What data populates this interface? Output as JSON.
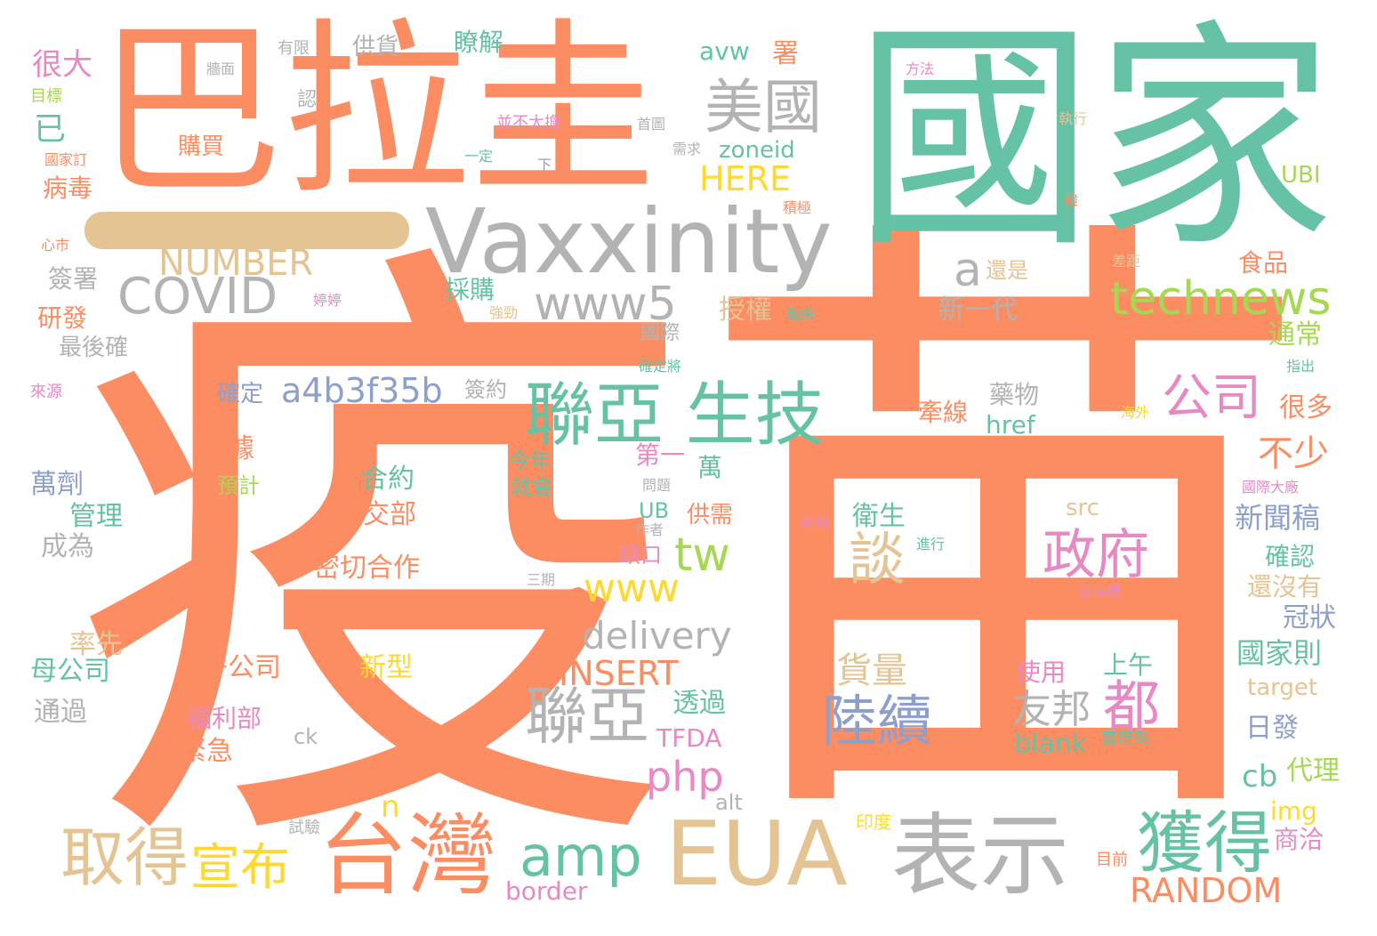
{
  "palette": {
    "orange": "#fc8d62",
    "teal": "#66c2a5",
    "gray": "#b3b3b3",
    "tan": "#e5c494",
    "blue": "#8da0cb",
    "pink": "#e78ac3",
    "green": "#a6d854",
    "yellow": "#ffd92f"
  },
  "words": [
    {
      "text": "疫",
      "color": "orange"
    },
    {
      "text": "苗",
      "color": "orange"
    },
    {
      "text": "巴拉圭",
      "color": "orange"
    },
    {
      "text": "國家",
      "color": "teal"
    },
    {
      "text": "Vaxxinity",
      "color": "gray"
    },
    {
      "text": "EUA",
      "color": "tan"
    },
    {
      "text": "表示",
      "color": "gray"
    },
    {
      "text": "台灣",
      "color": "orange"
    },
    {
      "text": "聯亞 生技",
      "color": "teal"
    },
    {
      "text": "美國",
      "color": "gray"
    },
    {
      "text": "technews",
      "color": "green"
    },
    {
      "text": "COVID",
      "color": "gray"
    },
    {
      "text": "NUMBER",
      "color": "tan"
    },
    {
      "text": "www5",
      "color": "gray"
    },
    {
      "text": "獲得",
      "color": "teal"
    },
    {
      "text": "取得",
      "color": "tan"
    },
    {
      "text": "宣布",
      "color": "yellow"
    },
    {
      "text": "amp",
      "color": "teal"
    },
    {
      "text": "聯亞",
      "color": "gray"
    },
    {
      "text": "政府",
      "color": "pink"
    },
    {
      "text": "陸續",
      "color": "blue"
    },
    {
      "text": "公司",
      "color": "pink"
    },
    {
      "text": "a4b3f35b",
      "color": "blue"
    },
    {
      "text": "談",
      "color": "tan"
    },
    {
      "text": "都",
      "color": "pink"
    },
    {
      "text": "tw",
      "color": "green"
    },
    {
      "text": "www",
      "color": "yellow"
    },
    {
      "text": "delivery",
      "color": "gray"
    },
    {
      "text": "INSERT",
      "color": "orange"
    },
    {
      "text": "RANDOM",
      "color": "orange"
    },
    {
      "text": "php",
      "color": "pink"
    },
    {
      "text": "HERE",
      "color": "yellow"
    },
    {
      "text": "a",
      "color": "gray"
    },
    {
      "text": "n",
      "color": "yellow"
    },
    {
      "text": "貨量",
      "color": "tan"
    },
    {
      "text": "友邦",
      "color": "gray"
    },
    {
      "text": "不少",
      "color": "orange"
    },
    {
      "text": "新聞稿",
      "color": "blue"
    },
    {
      "text": "國家則",
      "color": "teal"
    },
    {
      "text": "cb",
      "color": "teal"
    },
    {
      "text": "代理",
      "color": "green"
    },
    {
      "text": "很大",
      "color": "pink"
    },
    {
      "text": "已",
      "color": "teal"
    },
    {
      "text": "購買",
      "color": "orange"
    },
    {
      "text": "病毒",
      "color": "orange"
    },
    {
      "text": "簽署",
      "color": "gray"
    },
    {
      "text": "研發",
      "color": "orange"
    },
    {
      "text": "最後確",
      "color": "gray"
    },
    {
      "text": "萬劑",
      "color": "blue"
    },
    {
      "text": "管理",
      "color": "teal"
    },
    {
      "text": "成為",
      "color": "gray"
    },
    {
      "text": "率先",
      "color": "tan"
    },
    {
      "text": "母公司",
      "color": "teal"
    },
    {
      "text": "通過",
      "color": "gray"
    },
    {
      "text": "子公司",
      "color": "orange"
    },
    {
      "text": "福利部",
      "color": "pink"
    },
    {
      "text": "緊急",
      "color": "orange"
    },
    {
      "text": "新型",
      "color": "yellow"
    },
    {
      "text": "密切合作",
      "color": "orange"
    },
    {
      "text": "外交部",
      "color": "orange"
    },
    {
      "text": "合約",
      "color": "teal"
    },
    {
      "text": "確定",
      "color": "blue"
    },
    {
      "text": "簽約",
      "color": "gray"
    },
    {
      "text": "授權",
      "color": "tan"
    },
    {
      "text": "採購",
      "color": "teal"
    },
    {
      "text": "新一代",
      "color": "gray"
    },
    {
      "text": "還是",
      "color": "tan"
    },
    {
      "text": "藥物",
      "color": "gray"
    },
    {
      "text": "牽線",
      "color": "orange"
    },
    {
      "text": "href",
      "color": "teal"
    },
    {
      "text": "衛生",
      "color": "teal"
    },
    {
      "text": "src",
      "color": "tan"
    },
    {
      "text": "使用",
      "color": "pink"
    },
    {
      "text": "上午",
      "color": "teal"
    },
    {
      "text": "blank",
      "color": "teal"
    },
    {
      "text": "TFDA",
      "color": "pink"
    },
    {
      "text": "透過",
      "color": "teal"
    },
    {
      "text": "ck",
      "color": "gray"
    },
    {
      "text": "alt",
      "color": "gray"
    },
    {
      "text": "border",
      "color": "pink"
    },
    {
      "text": "img",
      "color": "yellow"
    },
    {
      "text": "商洽",
      "color": "pink"
    },
    {
      "text": "日發",
      "color": "blue"
    },
    {
      "text": "target",
      "color": "tan"
    },
    {
      "text": "冠狀",
      "color": "blue"
    },
    {
      "text": "還沒有",
      "color": "tan"
    },
    {
      "text": "確認",
      "color": "teal"
    },
    {
      "text": "通常",
      "color": "green"
    },
    {
      "text": "很多",
      "color": "orange"
    },
    {
      "text": "食品",
      "color": "orange"
    },
    {
      "text": "UBI",
      "color": "green"
    },
    {
      "text": "zoneid",
      "color": "teal"
    },
    {
      "text": "avw",
      "color": "teal"
    },
    {
      "text": "署",
      "color": "orange"
    },
    {
      "text": "瞭解",
      "color": "teal"
    },
    {
      "text": "供貨",
      "color": "gray"
    },
    {
      "text": "有限",
      "color": "gray"
    },
    {
      "text": "牆面",
      "color": "gray"
    },
    {
      "text": "目標",
      "color": "green"
    },
    {
      "text": "國家訂",
      "color": "orange"
    },
    {
      "text": "心市",
      "color": "orange"
    },
    {
      "text": "來源",
      "color": "pink"
    },
    {
      "text": "認",
      "color": "gray"
    },
    {
      "text": "並不太擔",
      "color": "pink"
    },
    {
      "text": "一定",
      "color": "teal"
    },
    {
      "text": "下",
      "color": "blue"
    },
    {
      "text": "首圖",
      "color": "gray"
    },
    {
      "text": "需求",
      "color": "gray"
    },
    {
      "text": "執行",
      "color": "tan"
    },
    {
      "text": "方法",
      "color": "pink"
    },
    {
      "text": "積極",
      "color": "orange"
    },
    {
      "text": "韓",
      "color": "orange"
    },
    {
      "text": "差距",
      "color": "tan"
    },
    {
      "text": "臨床",
      "color": "teal"
    },
    {
      "text": "強勁",
      "color": "tan"
    },
    {
      "text": "婷婷",
      "color": "pink"
    },
    {
      "text": "國際",
      "color": "gray"
    },
    {
      "text": "確定將",
      "color": "teal"
    },
    {
      "text": "指出",
      "color": "teal"
    },
    {
      "text": "海外",
      "color": "yellow"
    },
    {
      "text": "第一",
      "color": "pink"
    },
    {
      "text": "萬",
      "color": "teal"
    },
    {
      "text": "今年",
      "color": "teal"
    },
    {
      "text": "就會",
      "color": "teal"
    },
    {
      "text": "UB",
      "color": "teal"
    },
    {
      "text": "問題",
      "color": "gray"
    },
    {
      "text": "作者",
      "color": "gray"
    },
    {
      "text": "供需",
      "color": "orange"
    },
    {
      "text": "缺口",
      "color": "pink"
    },
    {
      "text": "產線",
      "color": "pink"
    },
    {
      "text": "進行",
      "color": "teal"
    },
    {
      "text": "並接續",
      "color": "pink"
    },
    {
      "text": "國際大廠",
      "color": "pink"
    },
    {
      "text": "三期",
      "color": "gray"
    },
    {
      "text": "據",
      "color": "orange"
    },
    {
      "text": "預計",
      "color": "green"
    },
    {
      "text": "實際到",
      "color": "teal"
    },
    {
      "text": "印度",
      "color": "yellow"
    },
    {
      "text": "目前",
      "color": "orange"
    },
    {
      "text": "試驗",
      "color": "gray"
    }
  ]
}
